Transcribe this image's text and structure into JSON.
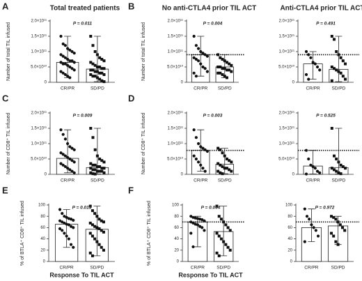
{
  "chart_data": [
    {
      "type": "bar",
      "panel": "A",
      "title": "Total treated patients",
      "y_label": "Number of total TIL infused",
      "annotation": "P = 0.011",
      "categories": [
        "CR/PR",
        "SD/PD"
      ],
      "values": [
        65000000000.0,
        43000000000.0
      ],
      "ranges": [
        [
          15000000000.0,
          150000000000.0
        ],
        [
          2000000000.0,
          150000000000.0
        ]
      ],
      "points": [
        [
          150000000000.0,
          125000000000.0,
          120000000000.0,
          110000000000.0,
          105000000000.0,
          100000000000.0,
          95000000000.0,
          90000000000.0,
          85000000000.0,
          80000000000.0,
          75000000000.0,
          70000000000.0,
          70000000000.0,
          65000000000.0,
          65000000000.0,
          60000000000.0,
          60000000000.0,
          55000000000.0,
          50000000000.0,
          45000000000.0,
          40000000000.0,
          35000000000.0,
          30000000000.0,
          25000000000.0,
          20000000000.0,
          15000000000.0
        ],
        [
          150000000000.0,
          120000000000.0,
          100000000000.0,
          90000000000.0,
          80000000000.0,
          75000000000.0,
          70000000000.0,
          65000000000.0,
          60000000000.0,
          55000000000.0,
          50000000000.0,
          50000000000.0,
          45000000000.0,
          45000000000.0,
          40000000000.0,
          40000000000.0,
          35000000000.0,
          35000000000.0,
          30000000000.0,
          30000000000.0,
          25000000000.0,
          25000000000.0,
          20000000000.0,
          20000000000.0,
          15000000000.0,
          10000000000.0,
          5000000000.0,
          2000000000.0
        ]
      ],
      "ylim": [
        0,
        200000000000.0
      ],
      "yticks": [
        0,
        {
          "value": 50000000000.0,
          "label": "5.0×10¹⁰"
        },
        {
          "value": 100000000000.0,
          "label": "1.0×10¹¹"
        },
        {
          "value": 150000000000.0,
          "label": "1.5×10¹¹"
        },
        {
          "value": 200000000000.0,
          "label": "2.0×10¹¹"
        }
      ]
    },
    {
      "type": "bar",
      "panel": "B",
      "title": "No anti-CTLA4  prior TIL ACT",
      "y_label": "Number of total TIL infused",
      "annotation": "P = 0.004",
      "reference_line": 90000000000.0,
      "categories": [
        "CR/PR",
        "SD/PD"
      ],
      "values": [
        90000000000.0,
        50000000000.0
      ],
      "ranges": [
        [
          20000000000.0,
          150000000000.0
        ],
        [
          15000000000.0,
          90000000000.0
        ]
      ],
      "points": [
        [
          150000000000.0,
          120000000000.0,
          110000000000.0,
          100000000000.0,
          95000000000.0,
          90000000000.0,
          85000000000.0,
          80000000000.0,
          75000000000.0,
          70000000000.0,
          60000000000.0,
          50000000000.0,
          45000000000.0,
          35000000000.0,
          30000000000.0,
          20000000000.0
        ],
        [
          90000000000.0,
          80000000000.0,
          75000000000.0,
          70000000000.0,
          65000000000.0,
          60000000000.0,
          55000000000.0,
          50000000000.0,
          50000000000.0,
          45000000000.0,
          45000000000.0,
          40000000000.0,
          40000000000.0,
          35000000000.0,
          30000000000.0,
          30000000000.0,
          25000000000.0,
          20000000000.0,
          15000000000.0
        ]
      ],
      "ylim": [
        0,
        200000000000.0
      ],
      "yticks": [
        0,
        {
          "value": 50000000000.0,
          "label": "5.0×10¹⁰"
        },
        {
          "value": 100000000000.0,
          "label": "1.0×10¹¹"
        },
        {
          "value": 150000000000.0,
          "label": "1.5×10¹¹"
        },
        {
          "value": 200000000000.0,
          "label": "2.0×10¹¹"
        }
      ]
    },
    {
      "type": "bar",
      "title": "Anti-CTLA4  prior TIL ACT",
      "annotation": "P = 0.491",
      "reference_line": 90000000000.0,
      "categories": [
        "CR/PR",
        "SD/PD"
      ],
      "values": [
        60000000000.0,
        42000000000.0
      ],
      "ranges": [
        [
          10000000000.0,
          100000000000.0
        ],
        [
          2000000000.0,
          150000000000.0
        ]
      ],
      "points": [
        [
          100000000000.0,
          90000000000.0,
          80000000000.0,
          65000000000.0,
          60000000000.0,
          50000000000.0,
          40000000000.0,
          25000000000.0,
          10000000000.0
        ],
        [
          150000000000.0,
          140000000000.0,
          100000000000.0,
          90000000000.0,
          80000000000.0,
          70000000000.0,
          60000000000.0,
          50000000000.0,
          45000000000.0,
          40000000000.0,
          35000000000.0,
          30000000000.0,
          20000000000.0,
          10000000000.0,
          5000000000.0
        ]
      ],
      "ylim": [
        0,
        200000000000.0
      ],
      "yticks": [
        0,
        {
          "value": 50000000000.0,
          "label": "5.0×10¹⁰"
        },
        {
          "value": 100000000000.0,
          "label": "1.0×10¹¹"
        },
        {
          "value": 150000000000.0,
          "label": "1.5×10¹¹"
        },
        {
          "value": 200000000000.0,
          "label": "2.0×10¹¹"
        }
      ]
    },
    {
      "type": "bar",
      "panel": "C",
      "y_label": "Number of CD8⁺ TIL infused",
      "annotation": "P = 0.009",
      "categories": [
        "CR/PR",
        "SD/PD"
      ],
      "values": [
        52000000000.0,
        22000000000.0
      ],
      "ranges": [
        [
          5000000000.0,
          145000000000.0
        ],
        [
          1000000000.0,
          150000000000.0
        ]
      ],
      "points": [
        [
          145000000000.0,
          130000000000.0,
          115000000000.0,
          100000000000.0,
          90000000000.0,
          85000000000.0,
          80000000000.0,
          70000000000.0,
          65000000000.0,
          60000000000.0,
          55000000000.0,
          50000000000.0,
          45000000000.0,
          40000000000.0,
          35000000000.0,
          30000000000.0,
          25000000000.0,
          20000000000.0,
          15000000000.0,
          10000000000.0,
          5000000000.0
        ],
        [
          150000000000.0,
          120000000000.0,
          80000000000.0,
          60000000000.0,
          50000000000.0,
          45000000000.0,
          40000000000.0,
          35000000000.0,
          30000000000.0,
          30000000000.0,
          25000000000.0,
          25000000000.0,
          20000000000.0,
          20000000000.0,
          20000000000.0,
          15000000000.0,
          15000000000.0,
          10000000000.0,
          10000000000.0,
          10000000000.0,
          5000000000.0,
          5000000000.0,
          2000000000.0,
          1000000000.0
        ]
      ],
      "ylim": [
        0,
        200000000000.0
      ],
      "yticks": [
        0,
        {
          "value": 50000000000.0,
          "label": "5.0×10¹⁰"
        },
        {
          "value": 100000000000.0,
          "label": "1.0×10¹¹"
        },
        {
          "value": 150000000000.0,
          "label": "1.5×10¹¹"
        },
        {
          "value": 200000000000.0,
          "label": "2.0×10¹¹"
        }
      ]
    },
    {
      "type": "bar",
      "panel": "D",
      "y_label": "Number of CD8⁺ TIL infused",
      "annotation": "P = 0.003",
      "reference_line": 78000000000.0,
      "categories": [
        "CR/PR",
        "SD/PD"
      ],
      "values": [
        78000000000.0,
        33000000000.0
      ],
      "ranges": [
        [
          10000000000.0,
          145000000000.0
        ],
        [
          2000000000.0,
          85000000000.0
        ]
      ],
      "points": [
        [
          145000000000.0,
          120000000000.0,
          100000000000.0,
          90000000000.0,
          85000000000.0,
          80000000000.0,
          75000000000.0,
          60000000000.0,
          50000000000.0,
          40000000000.0,
          30000000000.0,
          20000000000.0,
          10000000000.0
        ],
        [
          85000000000.0,
          80000000000.0,
          70000000000.0,
          60000000000.0,
          50000000000.0,
          45000000000.0,
          40000000000.0,
          35000000000.0,
          30000000000.0,
          25000000000.0,
          20000000000.0,
          20000000000.0,
          15000000000.0,
          10000000000.0,
          10000000000.0,
          5000000000.0,
          2000000000.0
        ]
      ],
      "ylim": [
        0,
        200000000000.0
      ],
      "yticks": [
        0,
        {
          "value": 50000000000.0,
          "label": "5.0×10¹⁰"
        },
        {
          "value": 100000000000.0,
          "label": "1.0×10¹¹"
        },
        {
          "value": 150000000000.0,
          "label": "1.5×10¹¹"
        },
        {
          "value": 200000000000.0,
          "label": "2.0×10¹¹"
        }
      ]
    },
    {
      "type": "bar",
      "annotation": "P = 0.525",
      "reference_line": 78000000000.0,
      "categories": [
        "CR/PR",
        "SD/PD"
      ],
      "values": [
        27000000000.0,
        22000000000.0
      ],
      "ranges": [
        [
          1000000000.0,
          78000000000.0
        ],
        [
          1000000000.0,
          150000000000.0
        ]
      ],
      "points": [
        [
          78000000000.0,
          50000000000.0,
          30000000000.0,
          25000000000.0,
          20000000000.0,
          10000000000.0,
          5000000000.0,
          1000000000.0
        ],
        [
          150000000000.0,
          60000000000.0,
          50000000000.0,
          40000000000.0,
          30000000000.0,
          25000000000.0,
          20000000000.0,
          20000000000.0,
          15000000000.0,
          10000000000.0,
          5000000000.0,
          2000000000.0
        ]
      ],
      "ylim": [
        0,
        200000000000.0
      ],
      "yticks": [
        0,
        {
          "value": 50000000000.0,
          "label": "5.0×10¹⁰"
        },
        {
          "value": 100000000000.0,
          "label": "1.0×10¹¹"
        },
        {
          "value": 150000000000.0,
          "label": "1.5×10¹¹"
        },
        {
          "value": 200000000000.0,
          "label": "2.0×10¹¹"
        }
      ]
    },
    {
      "type": "bar",
      "panel": "E",
      "y_label": "% of BTLA⁺ CD8⁺ TIL infused",
      "x_label": "Response To TIL ACT",
      "annotation": "P = 0.013",
      "categories": [
        "CR/PR",
        "SD/PD"
      ],
      "values": [
        66,
        57
      ],
      "ranges": [
        [
          25,
          92
        ],
        [
          10,
          98
        ]
      ],
      "points": [
        [
          92,
          85,
          80,
          78,
          76,
          75,
          73,
          72,
          70,
          68,
          66,
          65,
          62,
          60,
          58,
          55,
          50,
          45,
          40,
          30,
          25
        ],
        [
          98,
          90,
          85,
          80,
          75,
          72,
          70,
          68,
          65,
          62,
          60,
          58,
          55,
          52,
          50,
          45,
          40,
          35,
          30,
          25,
          20,
          15,
          10
        ]
      ],
      "ylim": [
        0,
        100
      ],
      "yticks": [
        0,
        20,
        40,
        60,
        80,
        100
      ]
    },
    {
      "type": "bar",
      "panel": "F",
      "y_label": "% of BTLA⁺ CD8⁺ TIL infused",
      "x_label": "Response To TIL ACT",
      "annotation": "P = 0.004",
      "reference_line": 70,
      "categories": [
        "CR/PR",
        "SD/PD"
      ],
      "values": [
        70,
        53
      ],
      "ranges": [
        [
          26,
          80
        ],
        [
          10,
          98
        ]
      ],
      "points": [
        [
          80,
          78,
          77,
          76,
          75,
          74,
          72,
          70,
          68,
          66,
          65,
          62,
          60,
          55,
          50,
          26
        ],
        [
          98,
          80,
          75,
          70,
          65,
          60,
          55,
          50,
          45,
          40,
          35,
          30,
          25,
          20,
          15,
          10
        ]
      ],
      "ylim": [
        0,
        100
      ],
      "yticks": [
        0,
        20,
        40,
        60,
        80,
        100
      ]
    },
    {
      "type": "bar",
      "annotation": "P = 0.972",
      "reference_line": 70,
      "categories": [
        "CR/PR",
        "SD/PD"
      ],
      "values": [
        60,
        63
      ],
      "ranges": [
        [
          35,
          93
        ],
        [
          30,
          80
        ]
      ],
      "points": [
        [
          93,
          80,
          75,
          65,
          60,
          55,
          45,
          35
        ],
        [
          80,
          78,
          75,
          70,
          65,
          60,
          55,
          50,
          45,
          35,
          30
        ]
      ],
      "ylim": [
        0,
        100
      ],
      "yticks": [
        0,
        20,
        40,
        60,
        80,
        100
      ]
    }
  ]
}
